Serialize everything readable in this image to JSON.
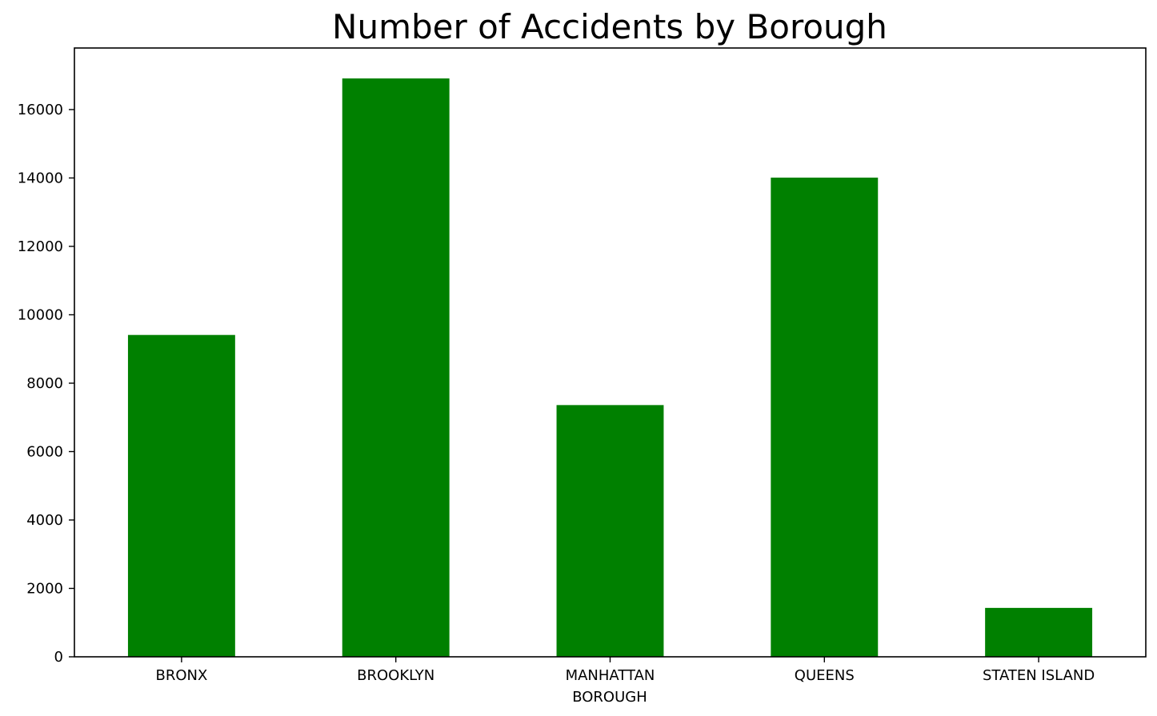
{
  "chart_data": {
    "type": "bar",
    "title": "Number of Accidents by Borough",
    "xlabel": "BOROUGH",
    "ylabel": "",
    "categories": [
      "BRONX",
      "BROOKLYN",
      "MANHATTAN",
      "QUEENS",
      "STATEN ISLAND"
    ],
    "values": [
      9410,
      16910,
      7360,
      14010,
      1430
    ],
    "ylim": [
      0,
      17800
    ],
    "yticks": [
      0,
      2000,
      4000,
      6000,
      8000,
      10000,
      12000,
      14000,
      16000
    ],
    "bar_color": "#008000",
    "grid": false,
    "legend": "none"
  }
}
